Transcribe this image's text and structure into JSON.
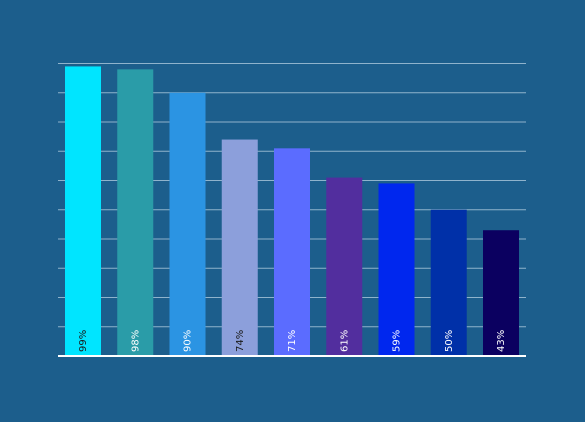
{
  "chart_data": {
    "type": "bar",
    "title": "",
    "xlabel": "",
    "ylabel": "",
    "ylim": [
      0,
      100
    ],
    "grid": true,
    "legend": "none",
    "categories": [
      "",
      "",
      "",
      "",
      "",
      "",
      "",
      "",
      ""
    ],
    "values": [
      99,
      98,
      90,
      74,
      71,
      61,
      59,
      50,
      43
    ],
    "data_labels": [
      "99%",
      "98%",
      "90%",
      "74%",
      "71%",
      "61%",
      "59%",
      "50%",
      "43%"
    ],
    "colors": [
      "#00e5ff",
      "#2a9ca8",
      "#2b94e3",
      "#8c9fdb",
      "#5b6cff",
      "#522e9e",
      "#0027ee",
      "#0030a8",
      "#0b0060"
    ],
    "label_colors": [
      "#1a1a1a",
      "#ffffff",
      "#ffffff",
      "#1a1a1a",
      "#ffffff",
      "#ffffff",
      "#ffffff",
      "#ffffff",
      "#ffffff"
    ]
  },
  "colors": {
    "background": "#1c5e8c",
    "grid": "#8fb3cc",
    "baseline": "#ffffff"
  }
}
